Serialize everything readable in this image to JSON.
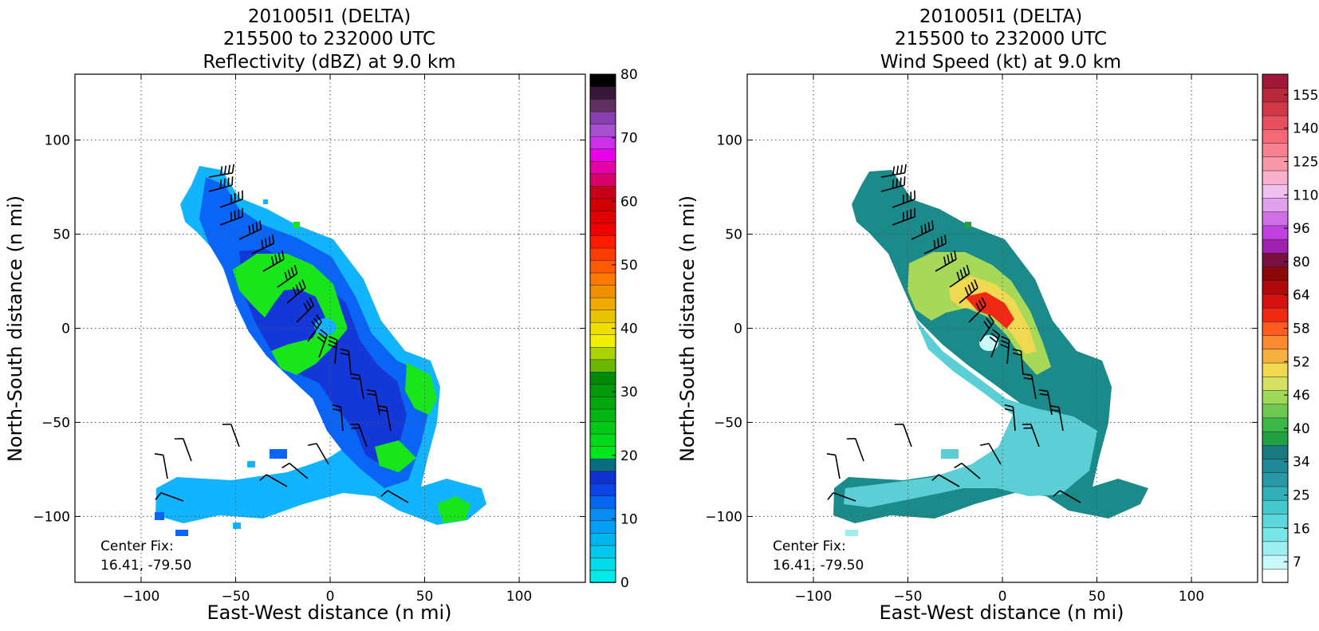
{
  "chart_data": [
    {
      "type": "heatmap",
      "title_lines": [
        "201005I1 (DELTA)",
        "215500 to 232000 UTC",
        "Reflectivity (dBZ) at 9.0 km"
      ],
      "xlabel": "East-West distance (n mi)",
      "ylabel": "North-South distance (n mi)",
      "xlim": [
        -135,
        135
      ],
      "ylim": [
        -135,
        135
      ],
      "xticks": [
        -100,
        -50,
        0,
        50,
        100
      ],
      "yticks": [
        -100,
        -50,
        0,
        50,
        100
      ],
      "xtick_labels": [
        "−100",
        "−50",
        "0",
        "50",
        "100"
      ],
      "ytick_labels": [
        "−100",
        "−50",
        "0",
        "50",
        "100"
      ],
      "grid": true,
      "center_fix_label": "Center Fix:",
      "center_fix_value": "16.41, -79.50",
      "colorbar": {
        "min": 0,
        "max": 80,
        "steps": 32,
        "tick_labels": [
          "0",
          "10",
          "20",
          "30",
          "40",
          "50",
          "60",
          "70",
          "80"
        ],
        "colors": [
          "#00eaea",
          "#00dcea",
          "#00c8ee",
          "#00b4f0",
          "#05a0f5",
          "#0a8cf5",
          "#0566f0",
          "#0a44e6",
          "#1030d0",
          "#0a6e80",
          "#00e61e",
          "#00d81a",
          "#00c816",
          "#00b812",
          "#00a80e",
          "#009a0a",
          "#008a06",
          "#6ab800",
          "#aad200",
          "#f0f000",
          "#f0de00",
          "#e8c400",
          "#f0aa00",
          "#f09000",
          "#ff7800",
          "#ff5a00",
          "#ff3c00",
          "#ff1a00",
          "#f00000",
          "#e00000",
          "#d00000",
          "#c8001a",
          "#d8006a",
          "#e400a8",
          "#e800e8",
          "#cc30e8",
          "#a850d0",
          "#8840b0",
          "#603060",
          "#381838",
          "#000000"
        ]
      },
      "fields": [
        {
          "name": "main-band",
          "fill_shades": [
            "#12b4ff",
            "#0a64f5",
            "#1438d8",
            "#19e61a"
          ]
        }
      ]
    },
    {
      "type": "heatmap",
      "title_lines": [
        "201005I1 (DELTA)",
        "215500 to 232000 UTC",
        "Wind Speed (kt) at 9.0 km"
      ],
      "xlabel": "East-West distance (n mi)",
      "ylabel": "North-South distance (n mi)",
      "xlim": [
        -135,
        135
      ],
      "ylim": [
        -135,
        135
      ],
      "xticks": [
        -100,
        -50,
        0,
        50,
        100
      ],
      "yticks": [
        -100,
        -50,
        0,
        50,
        100
      ],
      "xtick_labels": [
        "−100",
        "−50",
        "0",
        "50",
        "100"
      ],
      "ytick_labels": [
        "−100",
        "−50",
        "0",
        "50",
        "100"
      ],
      "grid": true,
      "center_fix_label": "Center Fix:",
      "center_fix_value": "16.41, -79.50",
      "colorbar": {
        "steps": 28,
        "tick_labels": [
          "7",
          "16",
          "25",
          "34",
          "40",
          "46",
          "52",
          "58",
          "64",
          "80",
          "96",
          "110",
          "125",
          "140",
          "155"
        ],
        "colors": [
          "#ffffff",
          "#c8f8f8",
          "#9ef0f0",
          "#78e6e6",
          "#5cd8dc",
          "#44c8cc",
          "#32b0b8",
          "#2898a4",
          "#208896",
          "#1a7a80",
          "#22a044",
          "#3cb848",
          "#6cc850",
          "#a0d858",
          "#d4e060",
          "#f0d850",
          "#f6b040",
          "#fa8a30",
          "#ff5a20",
          "#f02814",
          "#d41010",
          "#b00808",
          "#8a0808",
          "#781040",
          "#a020b0",
          "#c040e0",
          "#d070e8",
          "#e0a0ee",
          "#f0c0ee",
          "#f8b0cc",
          "#f898a8",
          "#f68090",
          "#f46878",
          "#e85060",
          "#d03848",
          "#b82838",
          "#a01838"
        ]
      }
    }
  ]
}
